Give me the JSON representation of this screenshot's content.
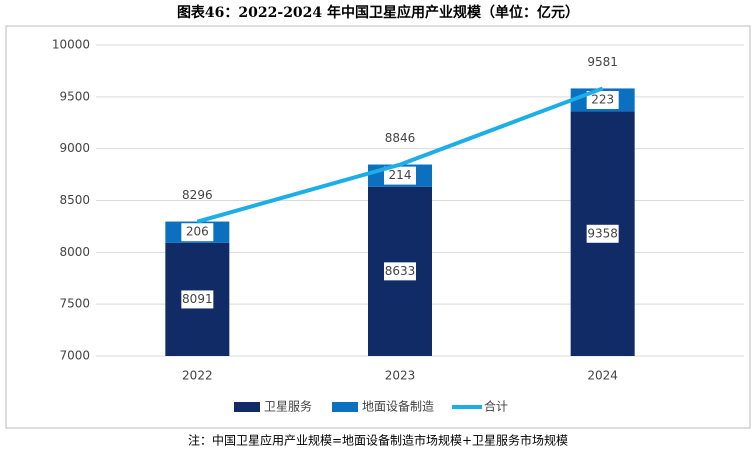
{
  "chart_data": {
    "type": "bar",
    "title": "图表46：2022-2024 年中国卫星应用产业规模（单位：亿元）",
    "note": "注：中国卫星应用产业规模=地面设备制造市场规模+卫星服务市场规模",
    "categories": [
      "2022",
      "2023",
      "2024"
    ],
    "series": [
      {
        "name": "卫星服务",
        "color": "#102b66",
        "values": [
          8091,
          8633,
          9358
        ]
      },
      {
        "name": "地面设备制造",
        "color": "#0b70c0",
        "values": [
          206,
          214,
          223
        ]
      },
      {
        "name": "合计",
        "type": "line",
        "color": "#1caee6",
        "values": [
          8296,
          8846,
          9581
        ]
      }
    ],
    "ylim": [
      7000,
      10000
    ],
    "yticks": [
      7000,
      7500,
      8000,
      8500,
      9000,
      9500,
      10000
    ],
    "grid": true
  }
}
